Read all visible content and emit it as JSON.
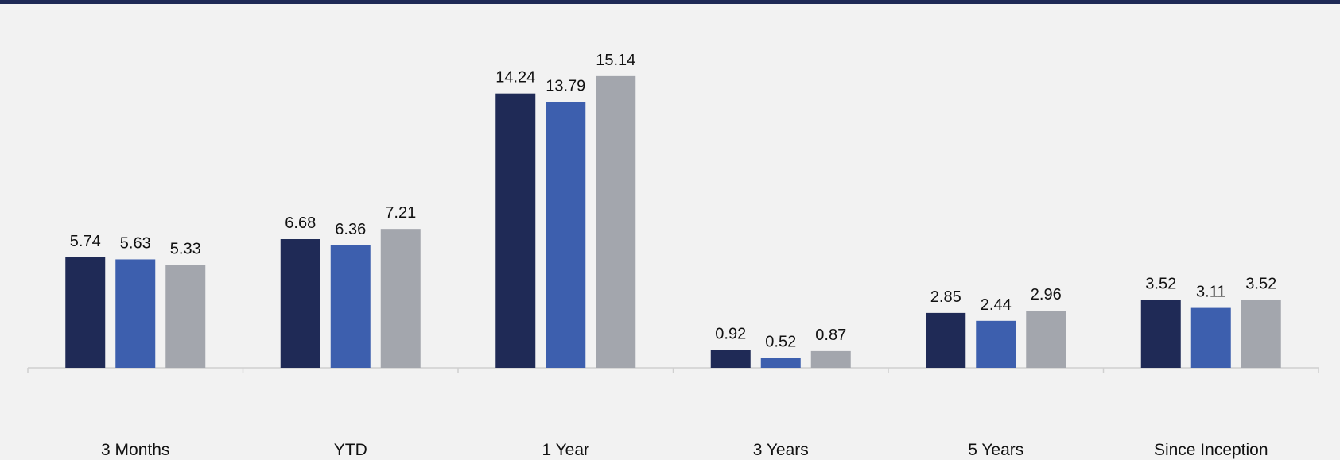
{
  "chart_data": {
    "type": "bar",
    "categories": [
      "3 Months",
      "YTD",
      "1 Year",
      "3 Years",
      "5 Years",
      "Since Inception"
    ],
    "series": [
      {
        "values": [
          5.74,
          6.68,
          14.24,
          0.92,
          2.85,
          3.52
        ],
        "color": "#1f2a56"
      },
      {
        "values": [
          5.63,
          6.36,
          13.79,
          0.52,
          2.44,
          3.11
        ],
        "color": "#3d5fae"
      },
      {
        "values": [
          5.33,
          7.21,
          15.14,
          0.87,
          2.96,
          3.52
        ],
        "color": "#a3a6ad"
      }
    ],
    "ylim": [
      0,
      16
    ],
    "grid": false,
    "legend": "none",
    "data_labels": true
  },
  "colors": {
    "top_bar": "#1f2a56",
    "background": "#f2f2f2",
    "axis": "#d0d0d0"
  }
}
